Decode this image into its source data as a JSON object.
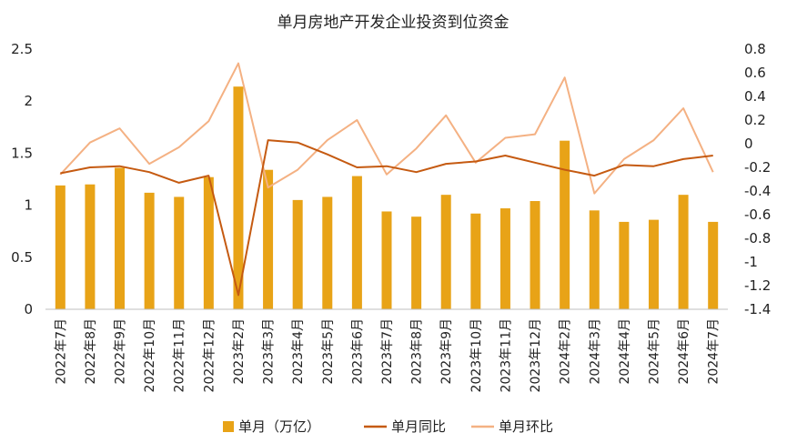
{
  "chart_data": {
    "type": "bar+line",
    "title": "单月房地产开发企业投资到位资金",
    "categories": [
      "2022年7月",
      "2022年8月",
      "2022年9月",
      "2022年10月",
      "2022年11月",
      "2022年12月",
      "2023年2月",
      "2023年3月",
      "2023年4月",
      "2023年5月",
      "2023年6月",
      "2023年7月",
      "2023年8月",
      "2023年9月",
      "2023年10月",
      "2023年11月",
      "2023年12月",
      "2024年2月",
      "2024年3月",
      "2024年4月",
      "2024年5月",
      "2024年6月",
      "2024年7月"
    ],
    "series": [
      {
        "name": "单月（万亿）",
        "type": "bar",
        "axis": "left",
        "color": "#E8A317",
        "values": [
          1.19,
          1.2,
          1.36,
          1.12,
          1.08,
          1.27,
          2.14,
          1.34,
          1.05,
          1.08,
          1.28,
          0.94,
          0.89,
          1.1,
          0.92,
          0.97,
          1.04,
          1.62,
          0.95,
          0.84,
          0.86,
          1.1,
          0.84
        ]
      },
      {
        "name": "单月同比",
        "type": "line",
        "axis": "right",
        "color": "#C55A11",
        "values": [
          -0.25,
          -0.2,
          -0.19,
          -0.24,
          -0.33,
          -0.27,
          -1.28,
          0.03,
          0.01,
          -0.09,
          -0.2,
          -0.19,
          -0.24,
          -0.17,
          -0.15,
          -0.1,
          -0.16,
          -0.22,
          -0.27,
          -0.18,
          -0.19,
          -0.13,
          -0.1
        ]
      },
      {
        "name": "单月环比",
        "type": "line",
        "axis": "right",
        "color": "#F4B183",
        "values": [
          -0.26,
          0.01,
          0.13,
          -0.17,
          -0.03,
          0.19,
          0.68,
          -0.37,
          -0.22,
          0.03,
          0.2,
          -0.26,
          -0.04,
          0.24,
          -0.16,
          0.05,
          0.08,
          0.56,
          -0.42,
          -0.13,
          0.03,
          0.3,
          -0.24
        ]
      }
    ],
    "left_axis": {
      "ylim": [
        0,
        2.5
      ],
      "ticks": [
        "0",
        "0.5",
        "1",
        "1.5",
        "2",
        "2.5"
      ]
    },
    "right_axis": {
      "ylim": [
        -1.4,
        0.8
      ],
      "ticks": [
        "-1.4",
        "-1.2",
        "-1",
        "-0.8",
        "-0.6",
        "-0.4",
        "-0.2",
        "0",
        "0.2",
        "0.4",
        "0.6",
        "0.8"
      ]
    },
    "grid": false,
    "legend_position": "bottom"
  }
}
